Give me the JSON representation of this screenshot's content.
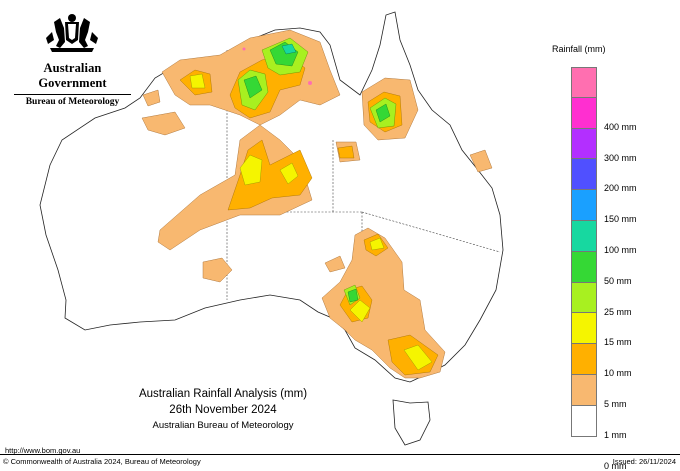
{
  "header": {
    "government": "Australian Government",
    "agency": "Bureau of Meteorology"
  },
  "legend": {
    "title": "Rainfall (mm)",
    "items": [
      {
        "label": "",
        "color": "#ff6fb0"
      },
      {
        "label": "400 mm",
        "color": "#ff2fd0"
      },
      {
        "label": "300 mm",
        "color": "#b32fff"
      },
      {
        "label": "200 mm",
        "color": "#5050ff"
      },
      {
        "label": "150 mm",
        "color": "#1aa0ff"
      },
      {
        "label": "100 mm",
        "color": "#17d8a0"
      },
      {
        "label": "50 mm",
        "color": "#35d835"
      },
      {
        "label": "25 mm",
        "color": "#a8f020"
      },
      {
        "label": "15 mm",
        "color": "#f5f500"
      },
      {
        "label": "10 mm",
        "color": "#ffb000"
      },
      {
        "label": "5 mm",
        "color": "#f8b870"
      },
      {
        "label": "1 mm",
        "color": "#ffffff"
      },
      {
        "label": "0 mm",
        "color": null
      }
    ]
  },
  "map": {
    "title": "Australian Rainfall Analysis (mm)",
    "date": "26th November 2024",
    "source": "Australian Bureau of Meteorology"
  },
  "footer": {
    "url": "http://www.bom.gov.au",
    "copyright": "© Commonwealth of Australia 2024, Bureau of Meteorology",
    "issued": "Issued: 26/11/2024"
  }
}
